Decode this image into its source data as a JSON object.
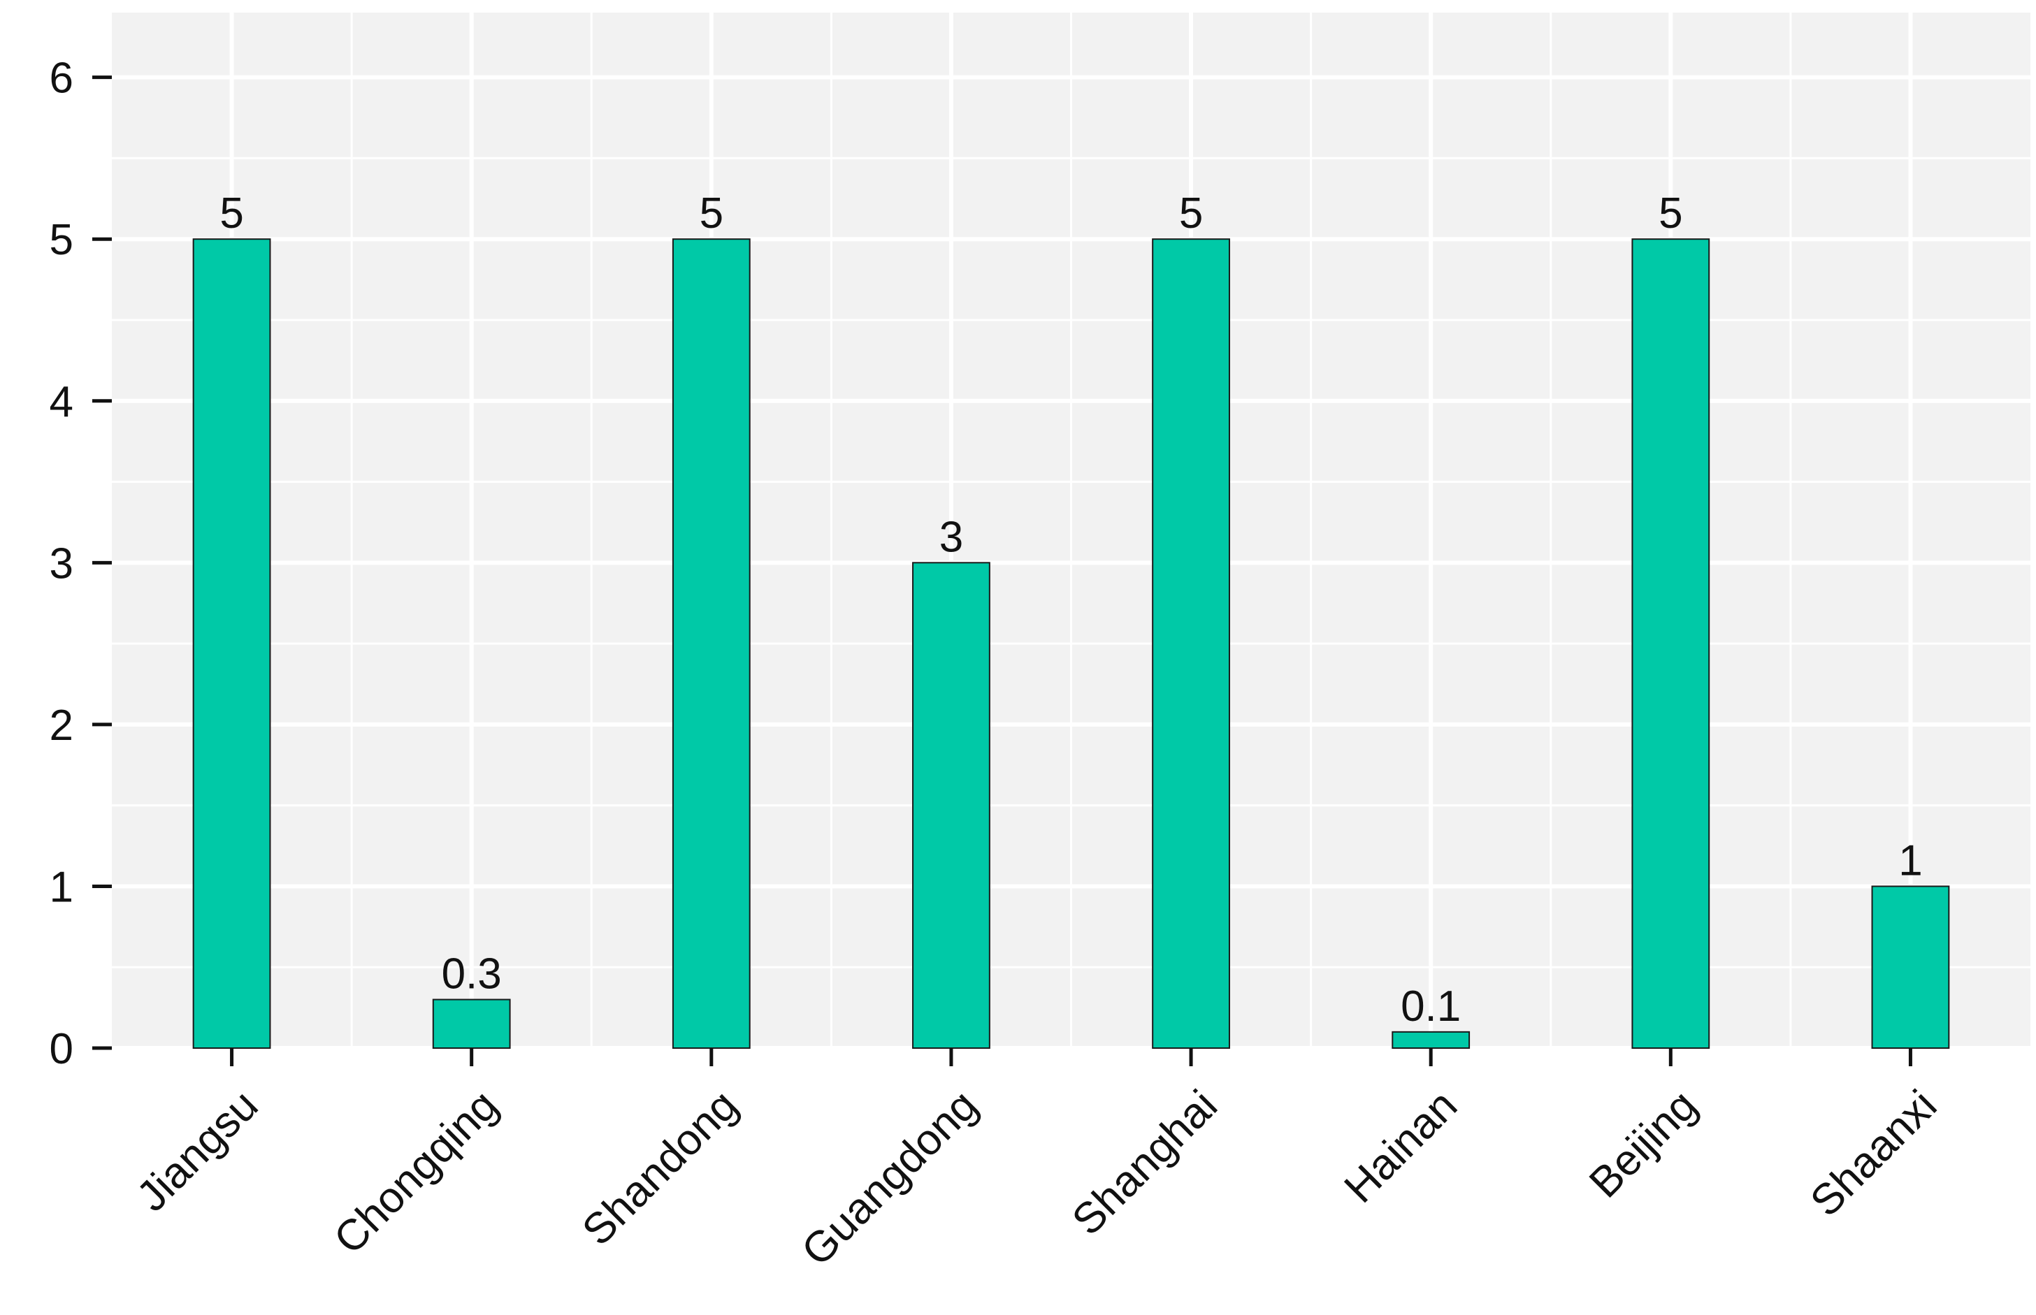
{
  "chart_data": {
    "type": "bar",
    "title": "",
    "xlabel": "",
    "ylabel": "",
    "categories": [
      "Jiangsu",
      "Chongqing",
      "Shandong",
      "Guangdong",
      "Shanghai",
      "Hainan",
      "Beijing",
      "Shaanxi"
    ],
    "values": [
      5,
      0.3,
      5,
      3,
      5,
      0.1,
      5,
      1
    ],
    "data_labels": [
      "5",
      "0.3",
      "5",
      "3",
      "5",
      "0.1",
      "5",
      "1"
    ],
    "ylim": [
      0,
      6.4
    ],
    "yticks": [
      0,
      1,
      2,
      3,
      4,
      5,
      6
    ],
    "ytick_labels": [
      "0",
      "1",
      "2",
      "3",
      "4",
      "5",
      "6"
    ],
    "grid": true,
    "legend": "none",
    "colors": {
      "bar": "#00C9A7",
      "bar_edge": "#1a1a1a",
      "panel_background": "#F2F2F2",
      "grid": "#FFFFFF",
      "axis_ticks": "#111111"
    }
  }
}
